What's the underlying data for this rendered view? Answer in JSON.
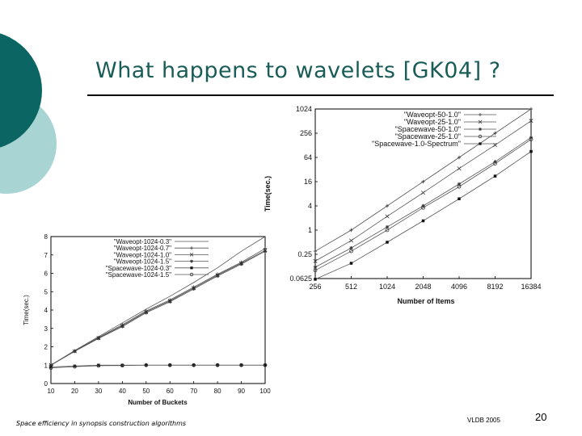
{
  "slide": {
    "title": "What happens to wavelets [GK04] ?",
    "footer_left": "Space efficiency in synopsis construction algorithms",
    "footer_center": "VLDB 2005",
    "page_number": "20",
    "colors": {
      "teal_dark": "#0b6663",
      "teal_light": "#a8d4d4",
      "title_color": "#1a5c57"
    }
  },
  "chart_data": [
    {
      "id": "buckets",
      "type": "line",
      "xlabel": "Number of Buckets",
      "ylabel": "Time(sec.)",
      "xlim": [
        10,
        100
      ],
      "ylim": [
        0,
        8
      ],
      "xticks": [
        10,
        20,
        30,
        40,
        50,
        60,
        70,
        80,
        90,
        100
      ],
      "yticks": [
        0,
        1,
        2,
        3,
        4,
        5,
        6,
        7,
        8
      ],
      "legend_position": "top-left",
      "x": [
        10,
        20,
        30,
        40,
        50,
        60,
        70,
        80,
        90,
        100
      ],
      "series": [
        {
          "name": "\"Waveopt-1024-0.3\"",
          "marker": "none",
          "values": [
            1.0,
            1.8,
            2.55,
            3.3,
            4.05,
            4.75,
            5.5,
            6.3,
            7.2,
            8.0
          ]
        },
        {
          "name": "\"Waveopt-1024-0.7\"",
          "marker": "plus",
          "values": [
            1.0,
            1.77,
            2.5,
            3.2,
            3.95,
            4.55,
            5.25,
            5.95,
            6.6,
            7.35
          ]
        },
        {
          "name": "\"Waveopt-1024-1.0\"",
          "marker": "cross",
          "values": [
            1.0,
            1.76,
            2.48,
            3.15,
            3.9,
            4.5,
            5.2,
            5.9,
            6.55,
            7.25
          ]
        },
        {
          "name": "\"Waveopt-1024-1.5\"",
          "marker": "star",
          "values": [
            1.0,
            1.75,
            2.45,
            3.1,
            3.85,
            4.45,
            5.15,
            5.85,
            6.5,
            7.2
          ]
        },
        {
          "name": "\"Spacewave-1024-0.3\"",
          "marker": "square",
          "values": [
            0.9,
            0.95,
            1.0,
            1.0,
            1.0,
            1.0,
            1.0,
            1.0,
            1.0,
            1.0
          ]
        },
        {
          "name": "\"Spacewave-1024-1.5\"",
          "marker": "circle",
          "values": [
            0.85,
            0.92,
            0.97,
            0.98,
            1.0,
            1.0,
            1.0,
            1.0,
            1.0,
            1.0
          ]
        }
      ]
    },
    {
      "id": "items",
      "type": "line",
      "xlabel": "Number of Items",
      "ylabel": "Time(sec.)",
      "scale": "log2",
      "xlim": [
        256,
        16384
      ],
      "ylim": [
        0.0625,
        1024
      ],
      "xticks": [
        256,
        512,
        1024,
        2048,
        4096,
        8192,
        16384
      ],
      "yticks": [
        0.0625,
        0.25,
        1,
        4,
        16,
        64,
        256,
        1024
      ],
      "ytick_labels": [
        "0.0625",
        "0.25",
        "1",
        "4",
        "16",
        "64",
        "256",
        "1024"
      ],
      "legend_position": "top-right",
      "x": [
        256,
        512,
        1024,
        2048,
        4096,
        8192,
        16384
      ],
      "series": [
        {
          "name": "\"Waveopt-50-1.0\"",
          "marker": "plus",
          "values": [
            0.3,
            1.0,
            4.0,
            16,
            64,
            256,
            1024
          ]
        },
        {
          "name": "\"Waveopt-25-1.0\"",
          "marker": "cross",
          "values": [
            0.17,
            0.55,
            2.2,
            8.5,
            34,
            130,
            520
          ]
        },
        {
          "name": "\"Spacewave-50-1.0\"",
          "marker": "star",
          "values": [
            0.12,
            0.36,
            1.2,
            4.0,
            14,
            50,
            200
          ]
        },
        {
          "name": "\"Spacewave-25-1.0\"",
          "marker": "circle",
          "values": [
            0.1,
            0.3,
            1.0,
            3.6,
            12,
            45,
            180
          ]
        },
        {
          "name": "\"Spacewave-1.0-Spectrum\"",
          "marker": "square",
          "values": [
            0.06,
            0.15,
            0.5,
            1.7,
            6,
            22,
            90
          ]
        }
      ]
    }
  ]
}
